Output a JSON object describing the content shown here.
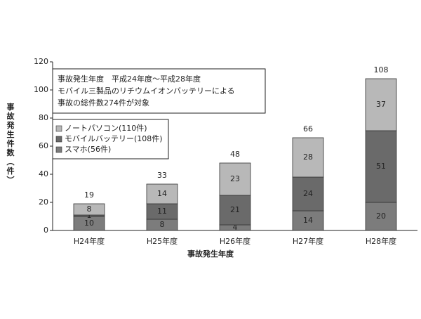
{
  "chart_data": {
    "type": "stacked_bar",
    "categories": [
      "H24年度",
      "H25年度",
      "H26年度",
      "H27年度",
      "H28年度"
    ],
    "series": [
      {
        "name": "スマホ(56件)",
        "color": "#7c7c7c",
        "values": [
          10,
          8,
          4,
          14,
          20
        ]
      },
      {
        "name": "モバイルバッテリー(108件)",
        "color": "#6a6a6a",
        "values": [
          1,
          11,
          21,
          24,
          51
        ]
      },
      {
        "name": "ノートパソコン(110件)",
        "color": "#b8b8b8",
        "values": [
          8,
          14,
          23,
          28,
          37
        ]
      }
    ],
    "total_labels": [
      19,
      33,
      48,
      66,
      108
    ],
    "ylim": [
      0,
      120
    ],
    "yticks": [
      0,
      20,
      40,
      60,
      80,
      100,
      120
    ],
    "y_label": "事故発生件数（件）",
    "x_label": "事故発生年度",
    "annotation": [
      "事故発生年度　平成24年度〜平成28年度",
      "モバイル三製品のリチウムイオンバッテリーによる",
      "事故の総件数274件が対象"
    ],
    "grid": false
  }
}
